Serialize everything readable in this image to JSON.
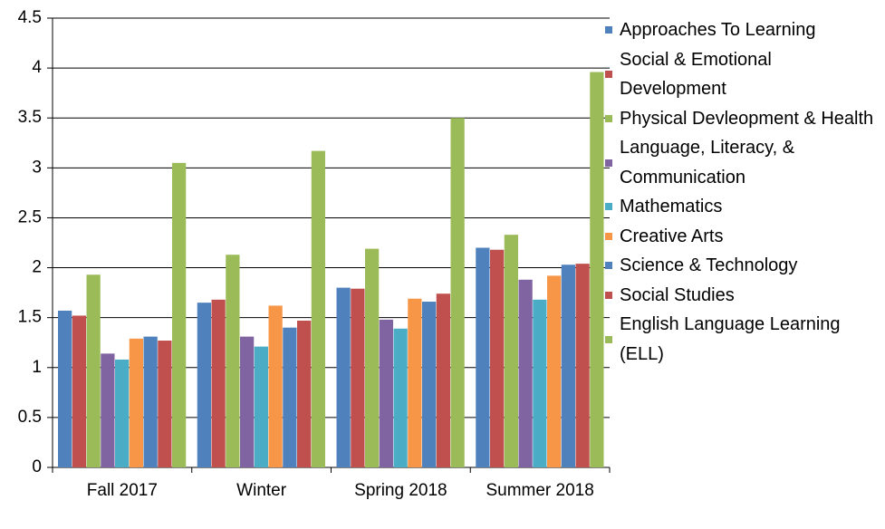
{
  "chart_data": {
    "type": "bar",
    "categories": [
      "Fall 2017",
      "Winter",
      "Spring 2018",
      "Summer 2018"
    ],
    "series": [
      {
        "name": "Approaches To Learning",
        "color": "#4f81bd",
        "values": [
          1.57,
          1.65,
          1.8,
          2.2
        ]
      },
      {
        "name": "Social & Emotional Development",
        "color": "#c0504d",
        "values": [
          1.52,
          1.68,
          1.79,
          2.18
        ]
      },
      {
        "name": "Physical Devleopment & Health",
        "color": "#9bbb59",
        "values": [
          1.93,
          2.13,
          2.19,
          2.33
        ]
      },
      {
        "name": "Language, Literacy, & Communication",
        "color": "#8064a2",
        "values": [
          1.14,
          1.31,
          1.48,
          1.88
        ]
      },
      {
        "name": "Mathematics",
        "color": "#4bacc6",
        "values": [
          1.08,
          1.21,
          1.39,
          1.68
        ]
      },
      {
        "name": "Creative Arts",
        "color": "#f79646",
        "values": [
          1.29,
          1.62,
          1.69,
          1.92
        ]
      },
      {
        "name": "Science & Technology",
        "color": "#4f81bd",
        "values": [
          1.31,
          1.4,
          1.66,
          2.03
        ]
      },
      {
        "name": "Social Studies",
        "color": "#c0504d",
        "values": [
          1.27,
          1.47,
          1.74,
          2.04
        ]
      },
      {
        "name": "English Language Learning (ELL)",
        "color": "#9bbb59",
        "values": [
          3.05,
          3.17,
          3.5,
          3.96
        ]
      }
    ],
    "ylim": [
      0,
      4.5
    ],
    "yticks": [
      0,
      0.5,
      1,
      1.5,
      2,
      2.5,
      3,
      3.5,
      4,
      4.5
    ],
    "grid": true,
    "legend": "right"
  }
}
